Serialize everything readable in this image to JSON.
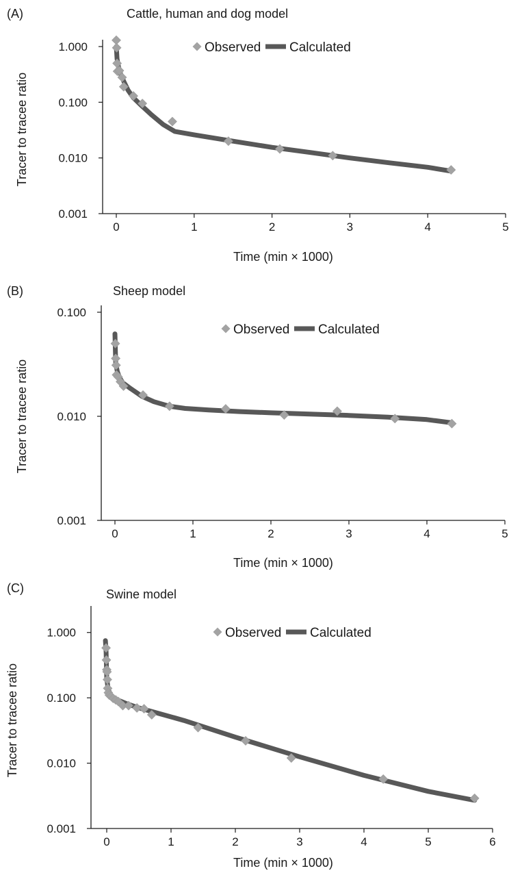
{
  "colors": {
    "observed": "#a3a3a3",
    "calculated": "#585858",
    "axis": "#1a1a1a"
  },
  "legend": {
    "observed": "Observed",
    "calculated": "Calculated"
  },
  "chart_data": [
    {
      "panel_letter": "(A)",
      "title": "Cattle, human and dog model",
      "type": "scatter",
      "xlabel": "Time (min × 1000)",
      "ylabel": "Tracer to tracee ratio",
      "xlim": [
        0,
        5
      ],
      "ylim": [
        0.001,
        1
      ],
      "yscale": "log",
      "xticks": [
        "0",
        "1",
        "2",
        "3",
        "4",
        "5"
      ],
      "yticks": [
        {
          "value": 1,
          "label": "1.000"
        },
        {
          "value": 0.1,
          "label": "0.100"
        },
        {
          "value": 0.01,
          "label": "0.010"
        },
        {
          "value": 0.001,
          "label": "0.001"
        }
      ],
      "legend_position": "top",
      "grid": false,
      "series": [
        {
          "name": "Observed",
          "kind": "scatter",
          "x": [
            0.0,
            0.005,
            0.01,
            0.015,
            0.04,
            0.075,
            0.095,
            0.22,
            0.335,
            0.72,
            1.44,
            2.1,
            2.78,
            4.3
          ],
          "y": [
            1.3,
            0.95,
            0.5,
            0.36,
            0.37,
            0.28,
            0.19,
            0.13,
            0.095,
            0.045,
            0.02,
            0.0145,
            0.011,
            0.0061
          ]
        },
        {
          "name": "Calculated",
          "kind": "line",
          "x": [
            0.0,
            0.01,
            0.03,
            0.06,
            0.1,
            0.15,
            0.22,
            0.32,
            0.45,
            0.6,
            0.75,
            1.0,
            1.5,
            2.0,
            2.5,
            3.0,
            3.5,
            4.0,
            4.3
          ],
          "y": [
            1.0,
            0.6,
            0.42,
            0.31,
            0.23,
            0.165,
            0.12,
            0.088,
            0.06,
            0.04,
            0.03,
            0.026,
            0.02,
            0.0155,
            0.0125,
            0.01,
            0.0082,
            0.0068,
            0.0058
          ]
        }
      ]
    },
    {
      "panel_letter": "(B)",
      "title": "Sheep model",
      "type": "scatter",
      "xlabel": "Time (min × 1000)",
      "ylabel": "Tracer to tracee ratio",
      "xlim": [
        0,
        5
      ],
      "ylim": [
        0.001,
        0.1
      ],
      "yscale": "log",
      "xticks": [
        "0",
        "1",
        "2",
        "3",
        "4",
        "5"
      ],
      "yticks": [
        {
          "value": 0.1,
          "label": "0.100"
        },
        {
          "value": 0.01,
          "label": "0.010"
        },
        {
          "value": 0.001,
          "label": "0.001"
        }
      ],
      "legend_position": "top",
      "grid": false,
      "series": [
        {
          "name": "Observed",
          "kind": "scatter",
          "x": [
            0.005,
            0.01,
            0.015,
            0.02,
            0.04,
            0.07,
            0.11,
            0.36,
            0.7,
            1.42,
            2.17,
            2.85,
            3.59,
            4.32
          ],
          "y": [
            0.05,
            0.036,
            0.031,
            0.025,
            0.024,
            0.0215,
            0.0195,
            0.016,
            0.0125,
            0.0118,
            0.0103,
            0.0112,
            0.0095,
            0.0085
          ]
        },
        {
          "name": "Calculated",
          "kind": "line",
          "x": [
            0.0,
            0.01,
            0.03,
            0.06,
            0.1,
            0.2,
            0.35,
            0.5,
            0.7,
            0.9,
            1.2,
            1.6,
            2.0,
            2.5,
            3.0,
            3.5,
            4.0,
            4.3
          ],
          "y": [
            0.062,
            0.033,
            0.027,
            0.0235,
            0.021,
            0.0185,
            0.0155,
            0.0138,
            0.0125,
            0.0119,
            0.0115,
            0.0111,
            0.0108,
            0.0105,
            0.0102,
            0.0098,
            0.0093,
            0.0087
          ]
        }
      ]
    },
    {
      "panel_letter": "(C)",
      "title": "Swine model",
      "type": "scatter",
      "xlabel": "Time (min × 1000)",
      "ylabel": "Tracer to tracee ratio",
      "xlim": [
        0,
        6
      ],
      "ylim": [
        0.001,
        2
      ],
      "yscale": "log",
      "xticks": [
        "0",
        "1",
        "2",
        "3",
        "4",
        "5",
        "6"
      ],
      "yticks": [
        {
          "value": 1,
          "label": "1.000"
        },
        {
          "value": 0.1,
          "label": "0.100"
        },
        {
          "value": 0.01,
          "label": "0.010"
        },
        {
          "value": 0.001,
          "label": "0.001"
        }
      ],
      "legend_position": "top",
      "grid": false,
      "series": [
        {
          "name": "Observed",
          "kind": "scatter",
          "x": [
            -0.01,
            -0.005,
            0.0,
            0.005,
            0.01,
            0.015,
            0.025,
            0.04,
            0.07,
            0.1,
            0.14,
            0.18,
            0.25,
            0.34,
            0.47,
            0.58,
            0.7,
            1.42,
            2.16,
            2.87,
            4.3,
            5.72
          ],
          "y": [
            0.58,
            0.38,
            0.27,
            0.25,
            0.19,
            0.14,
            0.12,
            0.11,
            0.105,
            0.098,
            0.093,
            0.088,
            0.076,
            0.076,
            0.07,
            0.068,
            0.055,
            0.035,
            0.022,
            0.012,
            0.0057,
            0.0029
          ]
        },
        {
          "name": "Calculated",
          "kind": "line",
          "x": [
            -0.02,
            -0.01,
            0.0,
            0.02,
            0.05,
            0.1,
            0.2,
            0.3,
            0.5,
            0.8,
            1.2,
            2.0,
            3.0,
            4.0,
            5.0,
            5.72
          ],
          "y": [
            0.75,
            0.5,
            0.2,
            0.14,
            0.115,
            0.1,
            0.09,
            0.082,
            0.07,
            0.058,
            0.045,
            0.025,
            0.0125,
            0.0065,
            0.0037,
            0.0027
          ]
        }
      ]
    }
  ]
}
